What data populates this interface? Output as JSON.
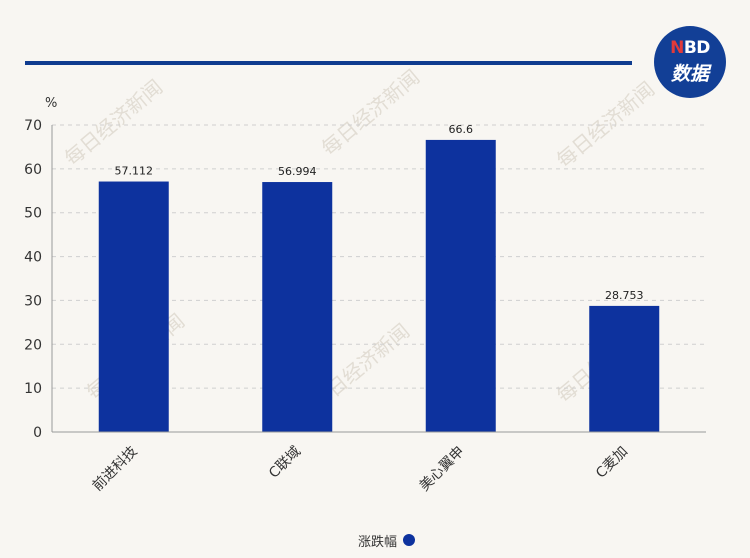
{
  "logo": {
    "line1_n": "N",
    "line1_rest": "BD",
    "line2": "数据"
  },
  "watermark": "每日经济新闻",
  "colors": {
    "bar": "#0d329e",
    "rule": "#0f3c8f",
    "grid": "#cfcfcf",
    "axis": "#999999"
  },
  "chart_data": {
    "type": "bar",
    "ylabel": "%",
    "ylim": [
      0,
      70
    ],
    "yticks": [
      0,
      10,
      20,
      30,
      40,
      50,
      60,
      70
    ],
    "grid": true,
    "categories": [
      "前进科技",
      "C联域",
      "美心翼申",
      "C麦加"
    ],
    "series": [
      {
        "name": "涨跌幅",
        "values": [
          57.112,
          56.994,
          66.6,
          28.753
        ],
        "labels": [
          "57.112",
          "56.994",
          "66.6",
          "28.753"
        ]
      }
    ],
    "legend": "bottom-center"
  }
}
